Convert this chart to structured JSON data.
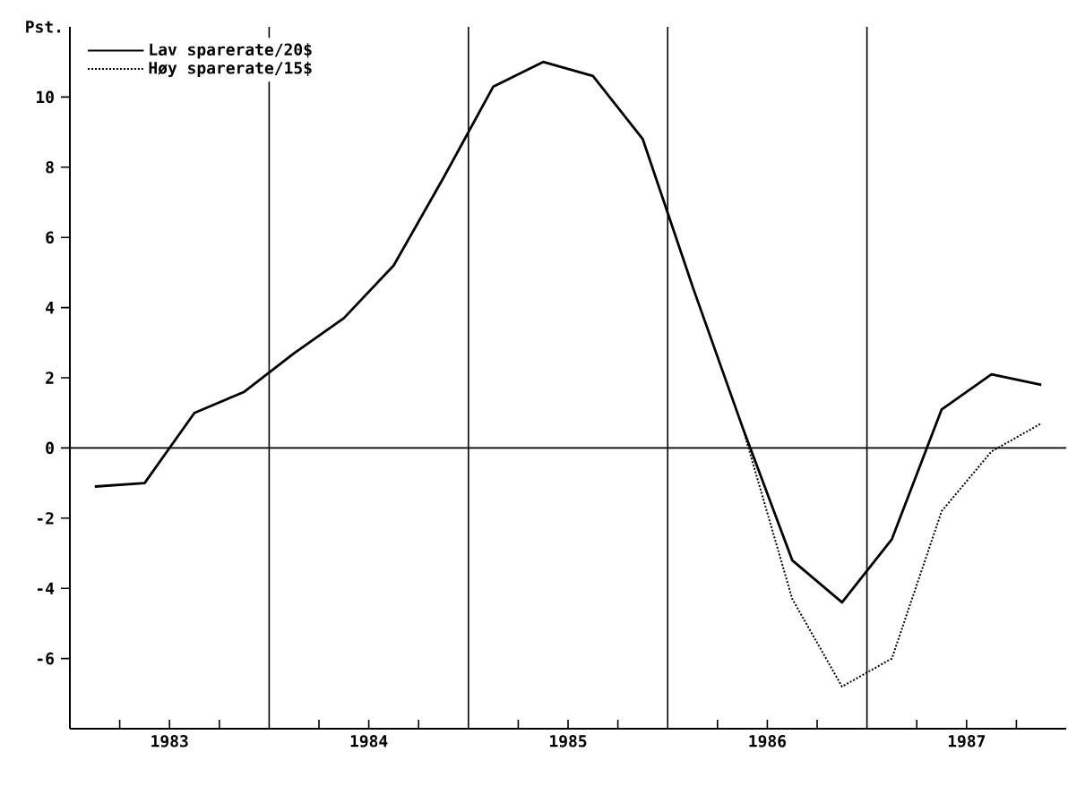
{
  "chart_data": {
    "type": "line",
    "ylabel": "Pst.",
    "xlim": [
      1983,
      1988
    ],
    "ylim": [
      -8,
      12
    ],
    "xticks": [
      {
        "value": 1983.25,
        "label": null
      },
      {
        "value": 1983.5,
        "label": "1983"
      },
      {
        "value": 1983.75,
        "label": null
      },
      {
        "value": 1984.25,
        "label": null
      },
      {
        "value": 1984.5,
        "label": "1984"
      },
      {
        "value": 1984.75,
        "label": null
      },
      {
        "value": 1985.25,
        "label": null
      },
      {
        "value": 1985.5,
        "label": "1985"
      },
      {
        "value": 1985.75,
        "label": null
      },
      {
        "value": 1986.25,
        "label": null
      },
      {
        "value": 1986.5,
        "label": "1986"
      },
      {
        "value": 1986.75,
        "label": null
      },
      {
        "value": 1987.25,
        "label": null
      },
      {
        "value": 1987.5,
        "label": "1987"
      },
      {
        "value": 1987.75,
        "label": null
      }
    ],
    "yticks": [
      -6,
      -4,
      -2,
      0,
      2,
      4,
      6,
      8,
      10
    ],
    "x": [
      1983.125,
      1983.375,
      1983.625,
      1983.875,
      1984.125,
      1984.375,
      1984.625,
      1984.875,
      1985.125,
      1985.375,
      1985.625,
      1985.875,
      1986.125,
      1986.375,
      1986.625,
      1986.875,
      1987.125,
      1987.375,
      1987.625,
      1987.875
    ],
    "series": [
      {
        "name": "Lav sparerate/20$",
        "color": "#000000",
        "line_style": "solid",
        "values": [
          -1.1,
          -1.0,
          1.0,
          1.6,
          2.7,
          3.7,
          5.2,
          7.7,
          10.3,
          11.0,
          10.6,
          8.8,
          4.6,
          0.6,
          -3.2,
          -4.4,
          -2.6,
          1.1,
          2.1,
          1.8
        ]
      },
      {
        "name": "Høy sparerate/15$",
        "color": "#000000",
        "line_style": "dotted",
        "x": [
          1986.375,
          1986.625,
          1986.875,
          1987.125,
          1987.375,
          1987.625,
          1987.875
        ],
        "values": [
          0.6,
          -4.3,
          -6.8,
          -6.0,
          -1.8,
          -0.1,
          0.7
        ]
      }
    ],
    "ref_lines": [
      {
        "axis": "x",
        "value": 1984
      },
      {
        "axis": "x",
        "value": 1985
      },
      {
        "axis": "x",
        "value": 1986
      },
      {
        "axis": "x",
        "value": 1987
      },
      {
        "axis": "y",
        "value": 0
      }
    ],
    "legend": "top left",
    "marker": "none",
    "grid": false
  }
}
